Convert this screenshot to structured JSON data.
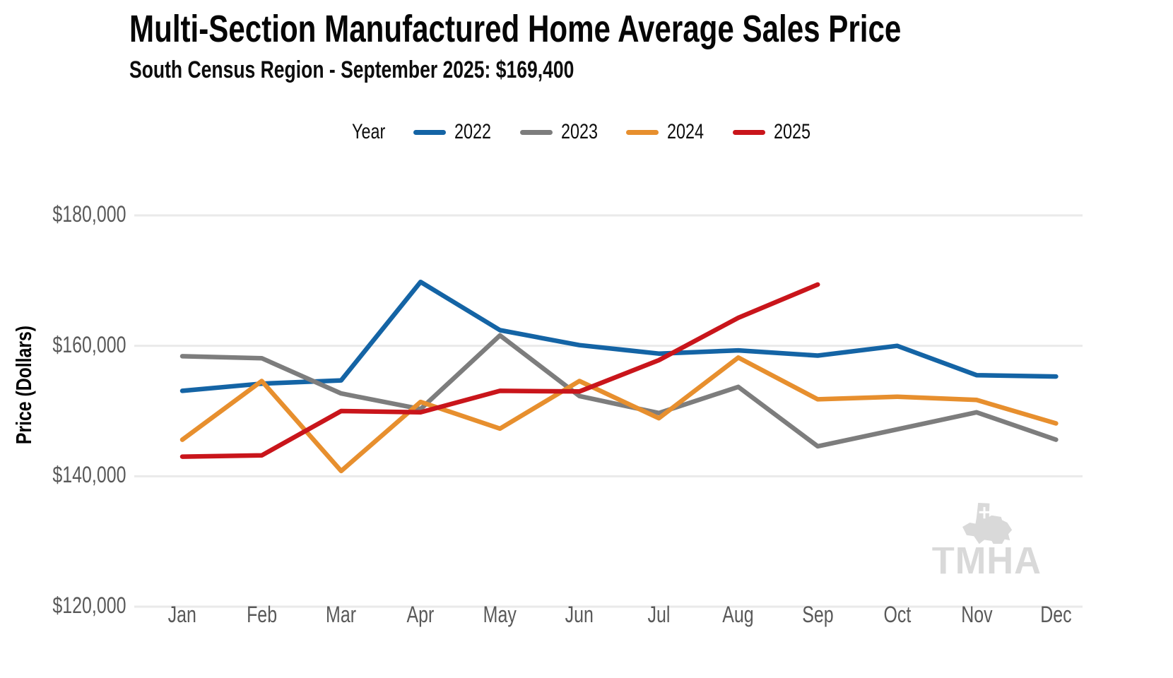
{
  "title": "Multi-Section Manufactured Home Average Sales Price",
  "subtitle": "South Census Region - September 2025: $169,400",
  "legend": {
    "title": "Year"
  },
  "watermark": "TMHA",
  "colors": {
    "axis_text": "#595959",
    "gridline": "#eaeaea",
    "title_text": "#060606",
    "watermark": "#d9d9d9"
  },
  "chart_data": {
    "type": "line",
    "title": "Multi-Section Manufactured Home Average Sales Price",
    "subtitle": "South Census Region - September 2025: $169,400",
    "categories": [
      "Jan",
      "Feb",
      "Mar",
      "Apr",
      "May",
      "Jun",
      "Jul",
      "Aug",
      "Sep",
      "Oct",
      "Nov",
      "Dec"
    ],
    "series": [
      {
        "name": "2022",
        "color": "#1464a5",
        "values": [
          153100,
          154200,
          154700,
          169800,
          162400,
          160100,
          158800,
          159300,
          158500,
          160000,
          155500,
          155300
        ]
      },
      {
        "name": "2023",
        "color": "#7d7d7d",
        "values": [
          158400,
          158100,
          152700,
          150300,
          161600,
          152300,
          149700,
          153700,
          144600,
          147200,
          149800,
          145600
        ]
      },
      {
        "name": "2024",
        "color": "#e78f2e",
        "values": [
          145600,
          154600,
          140800,
          151400,
          147300,
          154600,
          148900,
          158200,
          151800,
          152200,
          151700,
          148100
        ]
      },
      {
        "name": "2025",
        "color": "#c9151b",
        "values": [
          143000,
          143200,
          150000,
          149800,
          153100,
          153000,
          157800,
          164300,
          169400,
          null,
          null,
          null
        ]
      }
    ],
    "xlabel": "",
    "ylabel": "Price (Dollars)",
    "ylim": [
      120000,
      180000
    ],
    "yticks": [
      120000,
      140000,
      160000,
      180000
    ],
    "ytick_labels": [
      "$120,000",
      "$140,000",
      "$160,000",
      "$180,000"
    ],
    "legend_position": "top",
    "legend_title": "Year",
    "grid": "horizontal"
  }
}
